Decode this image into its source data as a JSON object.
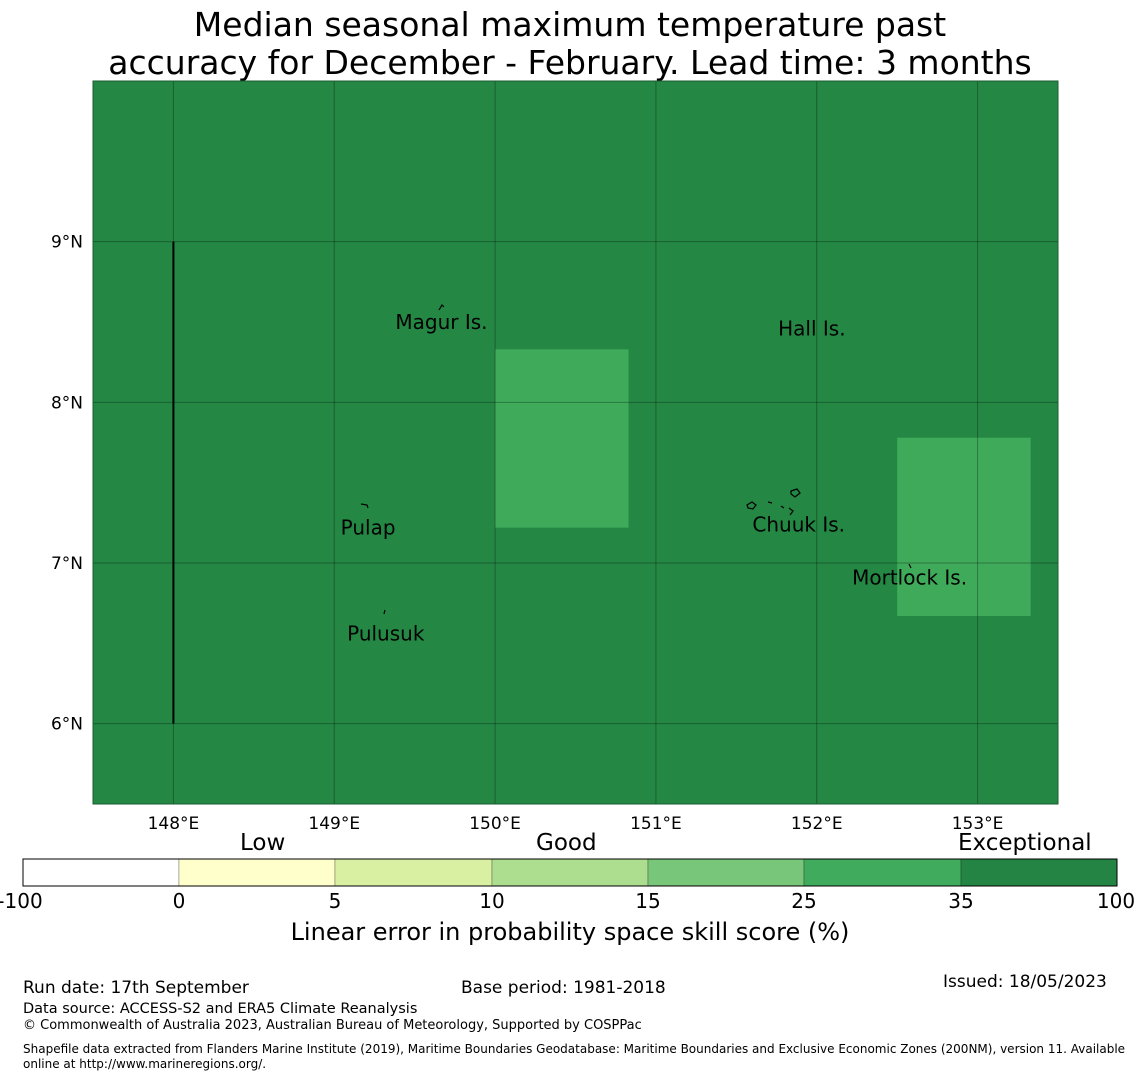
{
  "title": {
    "line1": "Median seasonal maximum temperature past",
    "line2": "accuracy for December - February. Lead time: 3 months"
  },
  "map": {
    "lon_range": [
      147.5,
      153.5
    ],
    "lat_range": [
      5.5,
      10.0
    ],
    "background_color": "#248744",
    "patch_color": "#3faa59",
    "lon_ticks": [
      148,
      149,
      150,
      151,
      152,
      153
    ],
    "lon_labels": [
      "148°E",
      "149°E",
      "150°E",
      "151°E",
      "152°E",
      "153°E"
    ],
    "lat_ticks": [
      9,
      8,
      7,
      6
    ],
    "lat_labels": [
      "9°N",
      "8°N",
      "7°N",
      "6°N"
    ],
    "patches": [
      {
        "name": "patch-central",
        "lon": [
          150.0,
          150.83
        ],
        "lat": [
          7.22,
          8.33
        ],
        "category": "25-35"
      },
      {
        "name": "patch-east",
        "lon": [
          152.5,
          153.33
        ],
        "lat": [
          6.67,
          7.78
        ],
        "category": "25-35"
      }
    ],
    "boundary_line": {
      "lon": 148.0,
      "lat": [
        6.0,
        9.0
      ]
    },
    "places": [
      {
        "name": "Magur Is.",
        "lon": 149.38,
        "lat": 8.5
      },
      {
        "name": "Hall Is.",
        "lon": 151.76,
        "lat": 8.46
      },
      {
        "name": "Pulap",
        "lon": 149.04,
        "lat": 7.22
      },
      {
        "name": "Chuuk Is.",
        "lon": 151.6,
        "lat": 7.24
      },
      {
        "name": "Mortlock Is.",
        "lon": 152.22,
        "lat": 6.91
      },
      {
        "name": "Pulusuk",
        "lon": 149.08,
        "lat": 6.56
      }
    ]
  },
  "colorbar": {
    "category_labels": [
      "Low",
      "Good",
      "Exceptional"
    ],
    "ticks": [
      "-100",
      "0",
      "5",
      "10",
      "15",
      "25",
      "35",
      "100"
    ],
    "colors": [
      "#ffffff",
      "#ffffcc",
      "#d9f0a3",
      "#addd8e",
      "#78c679",
      "#41ab5d",
      "#238443"
    ],
    "title": "Linear error in probability space skill score (%)"
  },
  "footer": {
    "run_date": "Run date: 17th September",
    "base_period": "Base period: 1981-2018",
    "issued": "Issued: 18/05/2023",
    "data_source": "Data source: ACCESS-S2 and ERA5 Climate Reanalysis",
    "copyright": "© Commonwealth of Australia 2023, Australian Bureau of Meteorology, Supported by COSPPac",
    "shapefile": "Shapefile data extracted from Flanders Marine Institute (2019), Maritime Boundaries Geodatabase: Maritime Boundaries and Exclusive Economic Zones (200NM), version 11. Available online at http://www.marineregions.org/."
  }
}
